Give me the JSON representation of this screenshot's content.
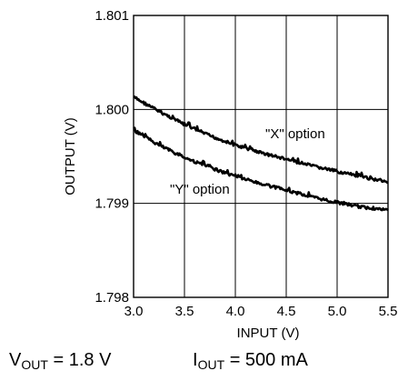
{
  "chart_data": {
    "type": "line",
    "title": "",
    "xlabel": "INPUT (V)",
    "ylabel": "OUTPUT (V)",
    "xlim": [
      3.0,
      5.5
    ],
    "ylim": [
      1.798,
      1.801
    ],
    "xticks": [
      3.0,
      3.5,
      4.0,
      4.5,
      5.0,
      5.5
    ],
    "xtick_labels": [
      "3.0",
      "3.5",
      "4.0",
      "4.5",
      "5.0",
      "5.5"
    ],
    "yticks": [
      1.798,
      1.799,
      1.8,
      1.801
    ],
    "ytick_labels": [
      "1.798",
      "1.799",
      "1.800",
      "1.801"
    ],
    "grid": true,
    "legend": "none",
    "series": [
      {
        "annotation": "\"X\" option",
        "color": "#000000",
        "x": [
          3.0,
          3.25,
          3.5,
          3.75,
          4.0,
          4.25,
          4.5,
          4.75,
          5.0,
          5.25,
          5.5
        ],
        "y": [
          1.80013,
          1.79998,
          1.79984,
          1.79972,
          1.79962,
          1.79954,
          1.79947,
          1.7994,
          1.79934,
          1.79928,
          1.79923
        ]
      },
      {
        "annotation": "\"Y\" option",
        "color": "#000000",
        "x": [
          3.0,
          3.25,
          3.5,
          3.75,
          4.0,
          4.25,
          4.5,
          4.75,
          5.0,
          5.25,
          5.5
        ],
        "y": [
          1.79978,
          1.79962,
          1.79949,
          1.79938,
          1.79929,
          1.79921,
          1.79914,
          1.79907,
          1.79901,
          1.79896,
          1.79893
        ]
      }
    ]
  },
  "conditions": {
    "vout_label": "V",
    "vout_sub": "OUT",
    "vout_value": "= 1.8 V",
    "iout_label": "I",
    "iout_sub": "OUT",
    "iout_value": "= 500 mA"
  }
}
